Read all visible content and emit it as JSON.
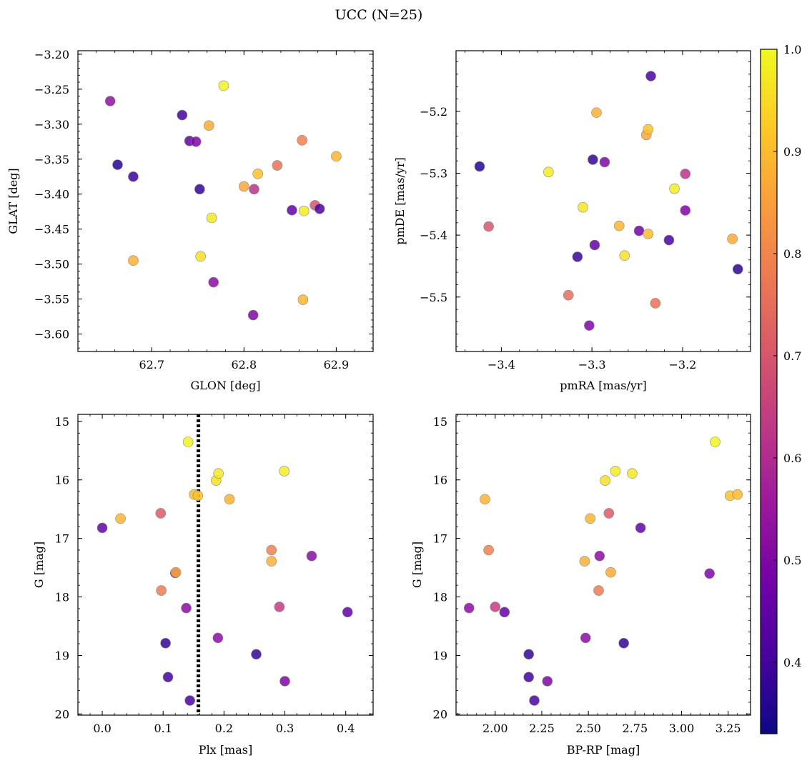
{
  "figure": {
    "title": "UCC (N=25)"
  },
  "colormap": {
    "name": "plasma",
    "range": [
      0.33,
      1.0
    ],
    "ticks": [
      0.4,
      0.5,
      0.6,
      0.7,
      0.8,
      0.9,
      1.0
    ],
    "tick_labels": [
      "0.4",
      "0.5",
      "0.6",
      "0.7",
      "0.8",
      "0.9",
      "1.0"
    ],
    "stops": [
      "#0d0887",
      "#46039f",
      "#7201a8",
      "#9c179e",
      "#bd3786",
      "#d8576b",
      "#ed7953",
      "#fb9f3a",
      "#fdca26",
      "#f0f921"
    ]
  },
  "chart_data": [
    {
      "type": "scatter",
      "xlabel": "GLON [deg]",
      "ylabel": "GLAT [deg]",
      "xlim": [
        62.62,
        62.94
      ],
      "ylim": [
        -3.625,
        -3.195
      ],
      "x_ticks": [
        62.7,
        62.8,
        62.9
      ],
      "x_tick_labels": [
        "62.7",
        "62.8",
        "62.9"
      ],
      "y_ticks": [
        -3.6,
        -3.55,
        -3.5,
        -3.45,
        -3.4,
        -3.35,
        -3.3,
        -3.25,
        -3.2
      ],
      "y_tick_labels": [
        "−3.60",
        "−3.55",
        "−3.50",
        "−3.45",
        "−3.40",
        "−3.35",
        "−3.30",
        "−3.25",
        "−3.20"
      ],
      "points": [
        {
          "x": 62.655,
          "y": -3.267,
          "c": 0.53
        },
        {
          "x": 62.663,
          "y": -3.358,
          "c": 0.36
        },
        {
          "x": 62.68,
          "y": -3.375,
          "c": 0.39
        },
        {
          "x": 62.68,
          "y": -3.495,
          "c": 0.88
        },
        {
          "x": 62.733,
          "y": -3.287,
          "c": 0.4
        },
        {
          "x": 62.741,
          "y": -3.324,
          "c": 0.45
        },
        {
          "x": 62.748,
          "y": -3.325,
          "c": 0.5
        },
        {
          "x": 62.752,
          "y": -3.393,
          "c": 0.38
        },
        {
          "x": 62.753,
          "y": -3.489,
          "c": 0.96
        },
        {
          "x": 62.762,
          "y": -3.302,
          "c": 0.87
        },
        {
          "x": 62.765,
          "y": -3.434,
          "c": 0.97
        },
        {
          "x": 62.767,
          "y": -3.526,
          "c": 0.52
        },
        {
          "x": 62.778,
          "y": -3.245,
          "c": 0.99
        },
        {
          "x": 62.8,
          "y": -3.389,
          "c": 0.86
        },
        {
          "x": 62.81,
          "y": -3.573,
          "c": 0.5
        },
        {
          "x": 62.811,
          "y": -3.393,
          "c": 0.62
        },
        {
          "x": 62.815,
          "y": -3.371,
          "c": 0.91
        },
        {
          "x": 62.836,
          "y": -3.359,
          "c": 0.76
        },
        {
          "x": 62.852,
          "y": -3.423,
          "c": 0.45
        },
        {
          "x": 62.863,
          "y": -3.323,
          "c": 0.79
        },
        {
          "x": 62.864,
          "y": -3.551,
          "c": 0.89
        },
        {
          "x": 62.865,
          "y": -3.424,
          "c": 0.98
        },
        {
          "x": 62.877,
          "y": -3.416,
          "c": 0.7
        },
        {
          "x": 62.882,
          "y": -3.421,
          "c": 0.42
        },
        {
          "x": 62.9,
          "y": -3.346,
          "c": 0.89
        }
      ]
    },
    {
      "type": "scatter",
      "xlabel": "pmRA [mas/yr]",
      "ylabel": "pmDE [mas/yr]",
      "xlim": [
        -3.45,
        -3.125
      ],
      "ylim": [
        -5.588,
        -5.102
      ],
      "x_ticks": [
        -3.4,
        -3.3,
        -3.2
      ],
      "x_tick_labels": [
        "−3.4",
        "−3.3",
        "−3.2"
      ],
      "y_ticks": [
        -5.5,
        -5.4,
        -5.3,
        -5.2
      ],
      "y_tick_labels": [
        "−5.5",
        "−5.4",
        "−5.3",
        "−5.2"
      ],
      "points": [
        {
          "x": -3.424,
          "y": -5.289,
          "c": 0.36
        },
        {
          "x": -3.414,
          "y": -5.386,
          "c": 0.7
        },
        {
          "x": -3.348,
          "y": -5.298,
          "c": 0.98
        },
        {
          "x": -3.326,
          "y": -5.497,
          "c": 0.75
        },
        {
          "x": -3.316,
          "y": -5.435,
          "c": 0.39
        },
        {
          "x": -3.31,
          "y": -5.355,
          "c": 0.97
        },
        {
          "x": -3.303,
          "y": -5.546,
          "c": 0.5
        },
        {
          "x": -3.299,
          "y": -5.278,
          "c": 0.38
        },
        {
          "x": -3.297,
          "y": -5.416,
          "c": 0.45
        },
        {
          "x": -3.295,
          "y": -5.202,
          "c": 0.88
        },
        {
          "x": -3.286,
          "y": -5.282,
          "c": 0.5
        },
        {
          "x": -3.27,
          "y": -5.385,
          "c": 0.89
        },
        {
          "x": -3.264,
          "y": -5.433,
          "c": 0.96
        },
        {
          "x": -3.248,
          "y": -5.393,
          "c": 0.48
        },
        {
          "x": -3.24,
          "y": -5.238,
          "c": 0.86
        },
        {
          "x": -3.238,
          "y": -5.229,
          "c": 0.91
        },
        {
          "x": -3.238,
          "y": -5.398,
          "c": 0.9
        },
        {
          "x": -3.235,
          "y": -5.143,
          "c": 0.42
        },
        {
          "x": -3.23,
          "y": -5.51,
          "c": 0.76
        },
        {
          "x": -3.215,
          "y": -5.408,
          "c": 0.41
        },
        {
          "x": -3.209,
          "y": -5.325,
          "c": 0.98
        },
        {
          "x": -3.197,
          "y": -5.301,
          "c": 0.62
        },
        {
          "x": -3.197,
          "y": -5.36,
          "c": 0.5
        },
        {
          "x": -3.145,
          "y": -5.406,
          "c": 0.87
        },
        {
          "x": -3.139,
          "y": -5.455,
          "c": 0.37
        }
      ]
    },
    {
      "type": "scatter",
      "xlabel": "Plx [mas]",
      "ylabel": "G [mag]",
      "xlim": [
        -0.04,
        0.445
      ],
      "ylim": [
        20.02,
        14.88
      ],
      "x_ticks": [
        0.0,
        0.1,
        0.2,
        0.3,
        0.4
      ],
      "x_tick_labels": [
        "0.0",
        "0.1",
        "0.2",
        "0.3",
        "0.4"
      ],
      "y_ticks": [
        15,
        16,
        17,
        18,
        19,
        20
      ],
      "y_tick_labels": [
        "15",
        "16",
        "17",
        "18",
        "19",
        "20"
      ],
      "vline": 0.158,
      "points": [
        {
          "x": 0.0,
          "y": 16.82,
          "c": 0.45
        },
        {
          "x": 0.03,
          "y": 16.66,
          "c": 0.89
        },
        {
          "x": 0.096,
          "y": 16.57,
          "c": 0.71
        },
        {
          "x": 0.097,
          "y": 17.89,
          "c": 0.78
        },
        {
          "x": 0.104,
          "y": 18.79,
          "c": 0.38
        },
        {
          "x": 0.108,
          "y": 19.37,
          "c": 0.4
        },
        {
          "x": 0.12,
          "y": 17.59,
          "c": 0.5
        },
        {
          "x": 0.121,
          "y": 17.58,
          "c": 0.87
        },
        {
          "x": 0.138,
          "y": 18.19,
          "c": 0.52
        },
        {
          "x": 0.141,
          "y": 15.35,
          "c": 0.99
        },
        {
          "x": 0.144,
          "y": 19.77,
          "c": 0.41
        },
        {
          "x": 0.151,
          "y": 16.25,
          "c": 0.9
        },
        {
          "x": 0.157,
          "y": 16.27,
          "c": 0.91
        },
        {
          "x": 0.187,
          "y": 16.01,
          "c": 0.96
        },
        {
          "x": 0.191,
          "y": 15.89,
          "c": 0.97
        },
        {
          "x": 0.19,
          "y": 18.7,
          "c": 0.52
        },
        {
          "x": 0.209,
          "y": 16.33,
          "c": 0.88
        },
        {
          "x": 0.253,
          "y": 18.98,
          "c": 0.38
        },
        {
          "x": 0.278,
          "y": 17.2,
          "c": 0.79
        },
        {
          "x": 0.278,
          "y": 17.39,
          "c": 0.88
        },
        {
          "x": 0.291,
          "y": 18.17,
          "c": 0.64
        },
        {
          "x": 0.299,
          "y": 15.85,
          "c": 0.98
        },
        {
          "x": 0.3,
          "y": 19.44,
          "c": 0.5
        },
        {
          "x": 0.344,
          "y": 17.3,
          "c": 0.52
        },
        {
          "x": 0.403,
          "y": 18.26,
          "c": 0.45
        }
      ]
    },
    {
      "type": "scatter",
      "xlabel": "BP-RP [mag]",
      "ylabel": "G [mag]",
      "xlim": [
        1.79,
        3.37
      ],
      "ylim": [
        20.02,
        14.88
      ],
      "x_ticks": [
        2.0,
        2.25,
        2.5,
        2.75,
        3.0,
        3.25
      ],
      "x_tick_labels": [
        "2.00",
        "2.25",
        "2.50",
        "2.75",
        "3.00",
        "3.25"
      ],
      "y_ticks": [
        15,
        16,
        17,
        18,
        19,
        20
      ],
      "y_tick_labels": [
        "15",
        "16",
        "17",
        "18",
        "19",
        "20"
      ],
      "points": [
        {
          "x": 1.86,
          "y": 18.19,
          "c": 0.52
        },
        {
          "x": 1.945,
          "y": 16.33,
          "c": 0.88
        },
        {
          "x": 1.965,
          "y": 17.2,
          "c": 0.79
        },
        {
          "x": 2.0,
          "y": 18.17,
          "c": 0.64
        },
        {
          "x": 2.05,
          "y": 18.26,
          "c": 0.45
        },
        {
          "x": 2.18,
          "y": 18.98,
          "c": 0.38
        },
        {
          "x": 2.18,
          "y": 19.37,
          "c": 0.4
        },
        {
          "x": 2.21,
          "y": 19.77,
          "c": 0.41
        },
        {
          "x": 2.28,
          "y": 19.44,
          "c": 0.5
        },
        {
          "x": 2.48,
          "y": 17.39,
          "c": 0.88
        },
        {
          "x": 2.485,
          "y": 18.7,
          "c": 0.52
        },
        {
          "x": 2.51,
          "y": 16.66,
          "c": 0.89
        },
        {
          "x": 2.555,
          "y": 17.89,
          "c": 0.78
        },
        {
          "x": 2.56,
          "y": 17.3,
          "c": 0.52
        },
        {
          "x": 2.59,
          "y": 16.01,
          "c": 0.96
        },
        {
          "x": 2.61,
          "y": 16.57,
          "c": 0.71
        },
        {
          "x": 2.62,
          "y": 17.58,
          "c": 0.87
        },
        {
          "x": 2.645,
          "y": 15.85,
          "c": 0.98
        },
        {
          "x": 2.69,
          "y": 18.79,
          "c": 0.38
        },
        {
          "x": 2.735,
          "y": 15.89,
          "c": 0.97
        },
        {
          "x": 2.78,
          "y": 16.82,
          "c": 0.45
        },
        {
          "x": 3.15,
          "y": 17.6,
          "c": 0.5
        },
        {
          "x": 3.18,
          "y": 15.35,
          "c": 0.99
        },
        {
          "x": 3.26,
          "y": 16.27,
          "c": 0.91
        },
        {
          "x": 3.3,
          "y": 16.25,
          "c": 0.9
        }
      ]
    }
  ]
}
